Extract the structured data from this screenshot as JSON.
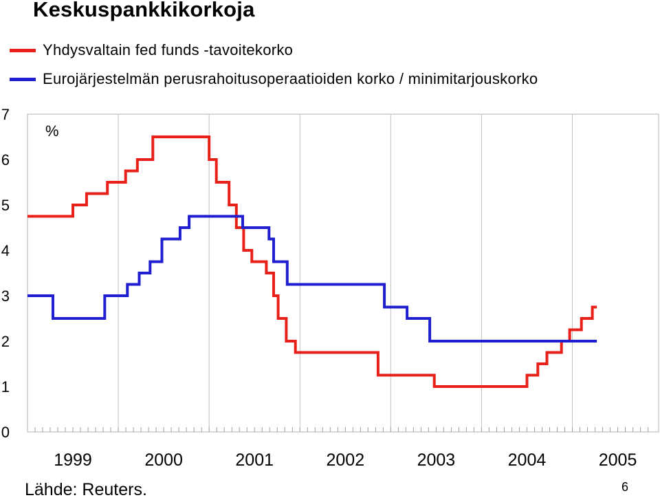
{
  "chart_data": {
    "type": "line",
    "step": true,
    "title": "Keskuspankkikorkoja",
    "ylabel": "%",
    "ylim": [
      0,
      7
    ],
    "yticks": [
      "0",
      "1",
      "2",
      "3",
      "4",
      "5",
      "6",
      "7"
    ],
    "xlim": [
      1999.0,
      2005.95
    ],
    "xticks": [
      "1999",
      "2000",
      "2001",
      "2002",
      "2003",
      "2004",
      "2005"
    ],
    "grid": true,
    "legend_position": "top-left",
    "series": [
      {
        "name": "Yhdysvaltain fed funds -tavoitekorko",
        "color": "#e8201a",
        "points": [
          [
            1999.0,
            4.75
          ],
          [
            1999.5,
            5.0
          ],
          [
            1999.65,
            5.25
          ],
          [
            1999.88,
            5.5
          ],
          [
            2000.08,
            5.75
          ],
          [
            2000.21,
            6.0
          ],
          [
            2000.38,
            6.5
          ],
          [
            2001.0,
            6.0
          ],
          [
            2001.08,
            5.5
          ],
          [
            2001.22,
            5.0
          ],
          [
            2001.3,
            4.5
          ],
          [
            2001.38,
            4.0
          ],
          [
            2001.47,
            3.75
          ],
          [
            2001.63,
            3.5
          ],
          [
            2001.71,
            3.0
          ],
          [
            2001.76,
            2.5
          ],
          [
            2001.85,
            2.0
          ],
          [
            2001.95,
            1.75
          ],
          [
            2002.86,
            1.25
          ],
          [
            2003.48,
            1.0
          ],
          [
            2004.5,
            1.25
          ],
          [
            2004.62,
            1.5
          ],
          [
            2004.72,
            1.75
          ],
          [
            2004.88,
            2.0
          ],
          [
            2004.97,
            2.25
          ],
          [
            2005.1,
            2.5
          ],
          [
            2005.22,
            2.75
          ],
          [
            2005.27,
            2.75
          ]
        ]
      },
      {
        "name": "Eurojärjestelmän perusrahoitusoperaatioiden korko / minimitarjouskorko",
        "color": "#1f1fcf",
        "points": [
          [
            1999.0,
            3.0
          ],
          [
            1999.28,
            2.5
          ],
          [
            1999.85,
            3.0
          ],
          [
            2000.1,
            3.25
          ],
          [
            2000.23,
            3.5
          ],
          [
            2000.35,
            3.75
          ],
          [
            2000.48,
            4.25
          ],
          [
            2000.68,
            4.5
          ],
          [
            2000.78,
            4.75
          ],
          [
            2001.37,
            4.5
          ],
          [
            2001.66,
            4.25
          ],
          [
            2001.71,
            3.75
          ],
          [
            2001.86,
            3.25
          ],
          [
            2002.93,
            2.75
          ],
          [
            2003.18,
            2.5
          ],
          [
            2003.43,
            2.0
          ],
          [
            2005.27,
            2.0
          ]
        ]
      }
    ]
  },
  "source": "Lähde: Reuters.",
  "page_number": "6"
}
